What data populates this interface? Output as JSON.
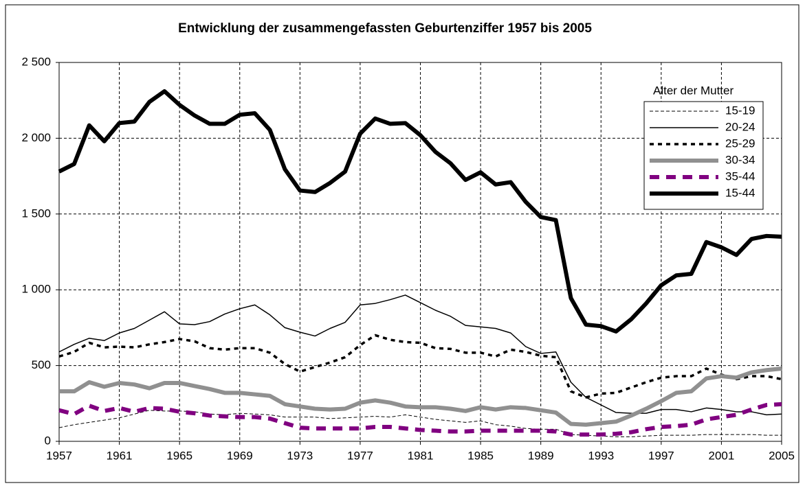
{
  "chart_data": {
    "type": "line",
    "title": "Entwicklung der zusammengefassten Geburtenziffer 1957 bis 2005",
    "legend_title": "Alter der Mutter",
    "legend": "top-right",
    "grid": true,
    "x": [
      1957,
      1958,
      1959,
      1960,
      1961,
      1962,
      1963,
      1964,
      1965,
      1966,
      1967,
      1968,
      1969,
      1970,
      1971,
      1972,
      1973,
      1974,
      1975,
      1976,
      1977,
      1978,
      1979,
      1980,
      1981,
      1982,
      1983,
      1984,
      1985,
      1986,
      1987,
      1988,
      1989,
      1990,
      1991,
      1992,
      1993,
      1994,
      1995,
      1996,
      1997,
      1998,
      1999,
      2000,
      2001,
      2002,
      2003,
      2004,
      2005
    ],
    "xlim": [
      1957,
      2005
    ],
    "xticks": [
      1957,
      1961,
      1965,
      1969,
      1973,
      1977,
      1981,
      1985,
      1989,
      1993,
      1997,
      2001,
      2005
    ],
    "ylim": [
      0,
      2500
    ],
    "yticks": [
      0,
      500,
      {
        "value": 1000,
        "label": "1 000"
      },
      {
        "value": 1500,
        "label": "1 500"
      },
      {
        "value": 2000,
        "label": "2 000"
      },
      {
        "value": 2500,
        "label": "2 500"
      }
    ],
    "series": [
      {
        "name": "15-19",
        "color": "#000000",
        "width": 1,
        "dash": "5,3",
        "values": [
          90,
          110,
          125,
          140,
          155,
          180,
          205,
          200,
          200,
          195,
          180,
          175,
          185,
          180,
          175,
          160,
          160,
          160,
          150,
          155,
          160,
          165,
          160,
          175,
          160,
          145,
          135,
          125,
          135,
          110,
          100,
          85,
          80,
          80,
          45,
          40,
          35,
          30,
          30,
          35,
          40,
          40,
          40,
          45,
          45,
          45,
          45,
          40,
          40
        ]
      },
      {
        "name": "20-24",
        "color": "#000000",
        "width": 1.5,
        "dash": "",
        "values": [
          590,
          640,
          680,
          665,
          715,
          745,
          800,
          855,
          775,
          770,
          790,
          840,
          875,
          900,
          835,
          750,
          720,
          695,
          745,
          785,
          900,
          910,
          935,
          965,
          915,
          865,
          825,
          765,
          755,
          745,
          715,
          625,
          580,
          590,
          390,
          290,
          240,
          190,
          185,
          185,
          210,
          210,
          195,
          220,
          210,
          195,
          195,
          175,
          180
        ]
      },
      {
        "name": "25-29",
        "color": "#000000",
        "width": 3.5,
        "dash": "6,6",
        "values": [
          560,
          590,
          650,
          620,
          625,
          620,
          640,
          655,
          675,
          660,
          615,
          605,
          615,
          615,
          585,
          510,
          460,
          490,
          520,
          555,
          635,
          700,
          670,
          655,
          650,
          615,
          610,
          585,
          585,
          560,
          605,
          590,
          565,
          555,
          330,
          290,
          315,
          320,
          355,
          390,
          420,
          430,
          430,
          480,
          440,
          410,
          430,
          430,
          410
        ]
      },
      {
        "name": "30-34",
        "color": "#909090",
        "width": 6,
        "dash": "",
        "values": [
          330,
          330,
          390,
          360,
          385,
          375,
          350,
          385,
          385,
          365,
          345,
          320,
          320,
          310,
          300,
          245,
          230,
          215,
          210,
          215,
          255,
          270,
          255,
          230,
          225,
          225,
          215,
          200,
          225,
          210,
          225,
          220,
          205,
          190,
          115,
          110,
          120,
          130,
          170,
          215,
          265,
          320,
          330,
          415,
          430,
          420,
          455,
          470,
          480
        ]
      },
      {
        "name": "35-44",
        "color": "#800080",
        "width": 6,
        "dash": "14,10",
        "values": [
          205,
          180,
          235,
          200,
          220,
          195,
          220,
          215,
          195,
          185,
          170,
          165,
          160,
          160,
          150,
          120,
          90,
          85,
          85,
          85,
          85,
          95,
          95,
          85,
          75,
          70,
          65,
          65,
          70,
          70,
          70,
          70,
          70,
          65,
          45,
          45,
          45,
          50,
          60,
          80,
          95,
          100,
          110,
          145,
          160,
          175,
          210,
          240,
          245
        ]
      },
      {
        "name": "15-44",
        "color": "#000000",
        "width": 6,
        "dash": "",
        "values": [
          1780,
          1830,
          2085,
          1980,
          2100,
          2110,
          2240,
          2310,
          2220,
          2150,
          2095,
          2095,
          2155,
          2165,
          2055,
          1795,
          1655,
          1645,
          1705,
          1780,
          2030,
          2130,
          2095,
          2100,
          2020,
          1910,
          1835,
          1725,
          1775,
          1695,
          1710,
          1580,
          1480,
          1460,
          945,
          770,
          760,
          725,
          805,
          910,
          1030,
          1095,
          1105,
          1315,
          1280,
          1230,
          1335,
          1355,
          1350
        ]
      }
    ]
  }
}
